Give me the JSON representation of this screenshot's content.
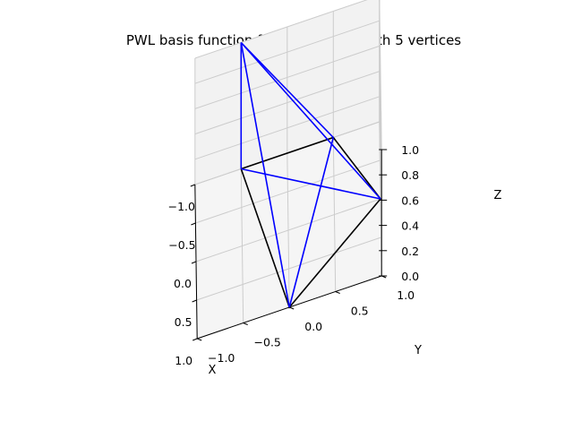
{
  "chart_data": {
    "type": "line3d",
    "title": "PWL basis function for a polygonal with 5 vertices",
    "xlabel": "X",
    "ylabel": "Y",
    "zlabel": "Z",
    "xlim": [
      -1.0,
      1.0
    ],
    "ylim": [
      -1.0,
      1.0
    ],
    "zlim": [
      0.0,
      1.0
    ],
    "xticks": [
      "−1.0",
      "−0.5",
      "0.0",
      "0.5",
      "1.0"
    ],
    "yticks": [
      "−1.0",
      "−0.5",
      "0.0",
      "0.5",
      "1.0"
    ],
    "zticks": [
      "0.0",
      "0.2",
      "0.4",
      "0.6",
      "0.8",
      "1.0"
    ],
    "grid": true,
    "polygon": {
      "color": "#000000",
      "vertices": [
        [
          -1.0,
          -0.5,
          0.0
        ],
        [
          1.0,
          0.0,
          0.0
        ],
        [
          0.0,
          1.0,
          0.0
        ],
        [
          -1.0,
          0.5,
          0.0
        ],
        [
          -1.0,
          -0.5,
          0.0
        ]
      ]
    },
    "basis_function": {
      "color": "#0000ff",
      "apex": [
        -1.0,
        -0.5,
        1.0
      ],
      "lines": [
        [
          [
            -1.0,
            -0.5,
            1.0
          ],
          [
            -1.0,
            -0.5,
            0.0
          ]
        ],
        [
          [
            -1.0,
            -0.5,
            1.0
          ],
          [
            1.0,
            0.0,
            0.0
          ]
        ],
        [
          [
            -1.0,
            -0.5,
            1.0
          ],
          [
            0.0,
            1.0,
            0.0
          ]
        ],
        [
          [
            -1.0,
            -0.5,
            1.0
          ],
          [
            -1.0,
            0.5,
            0.0
          ]
        ],
        [
          [
            1.0,
            0.0,
            0.0
          ],
          [
            -1.0,
            0.5,
            0.0
          ]
        ],
        [
          [
            -1.0,
            -0.5,
            0.0
          ],
          [
            0.0,
            1.0,
            0.0
          ]
        ]
      ]
    }
  }
}
